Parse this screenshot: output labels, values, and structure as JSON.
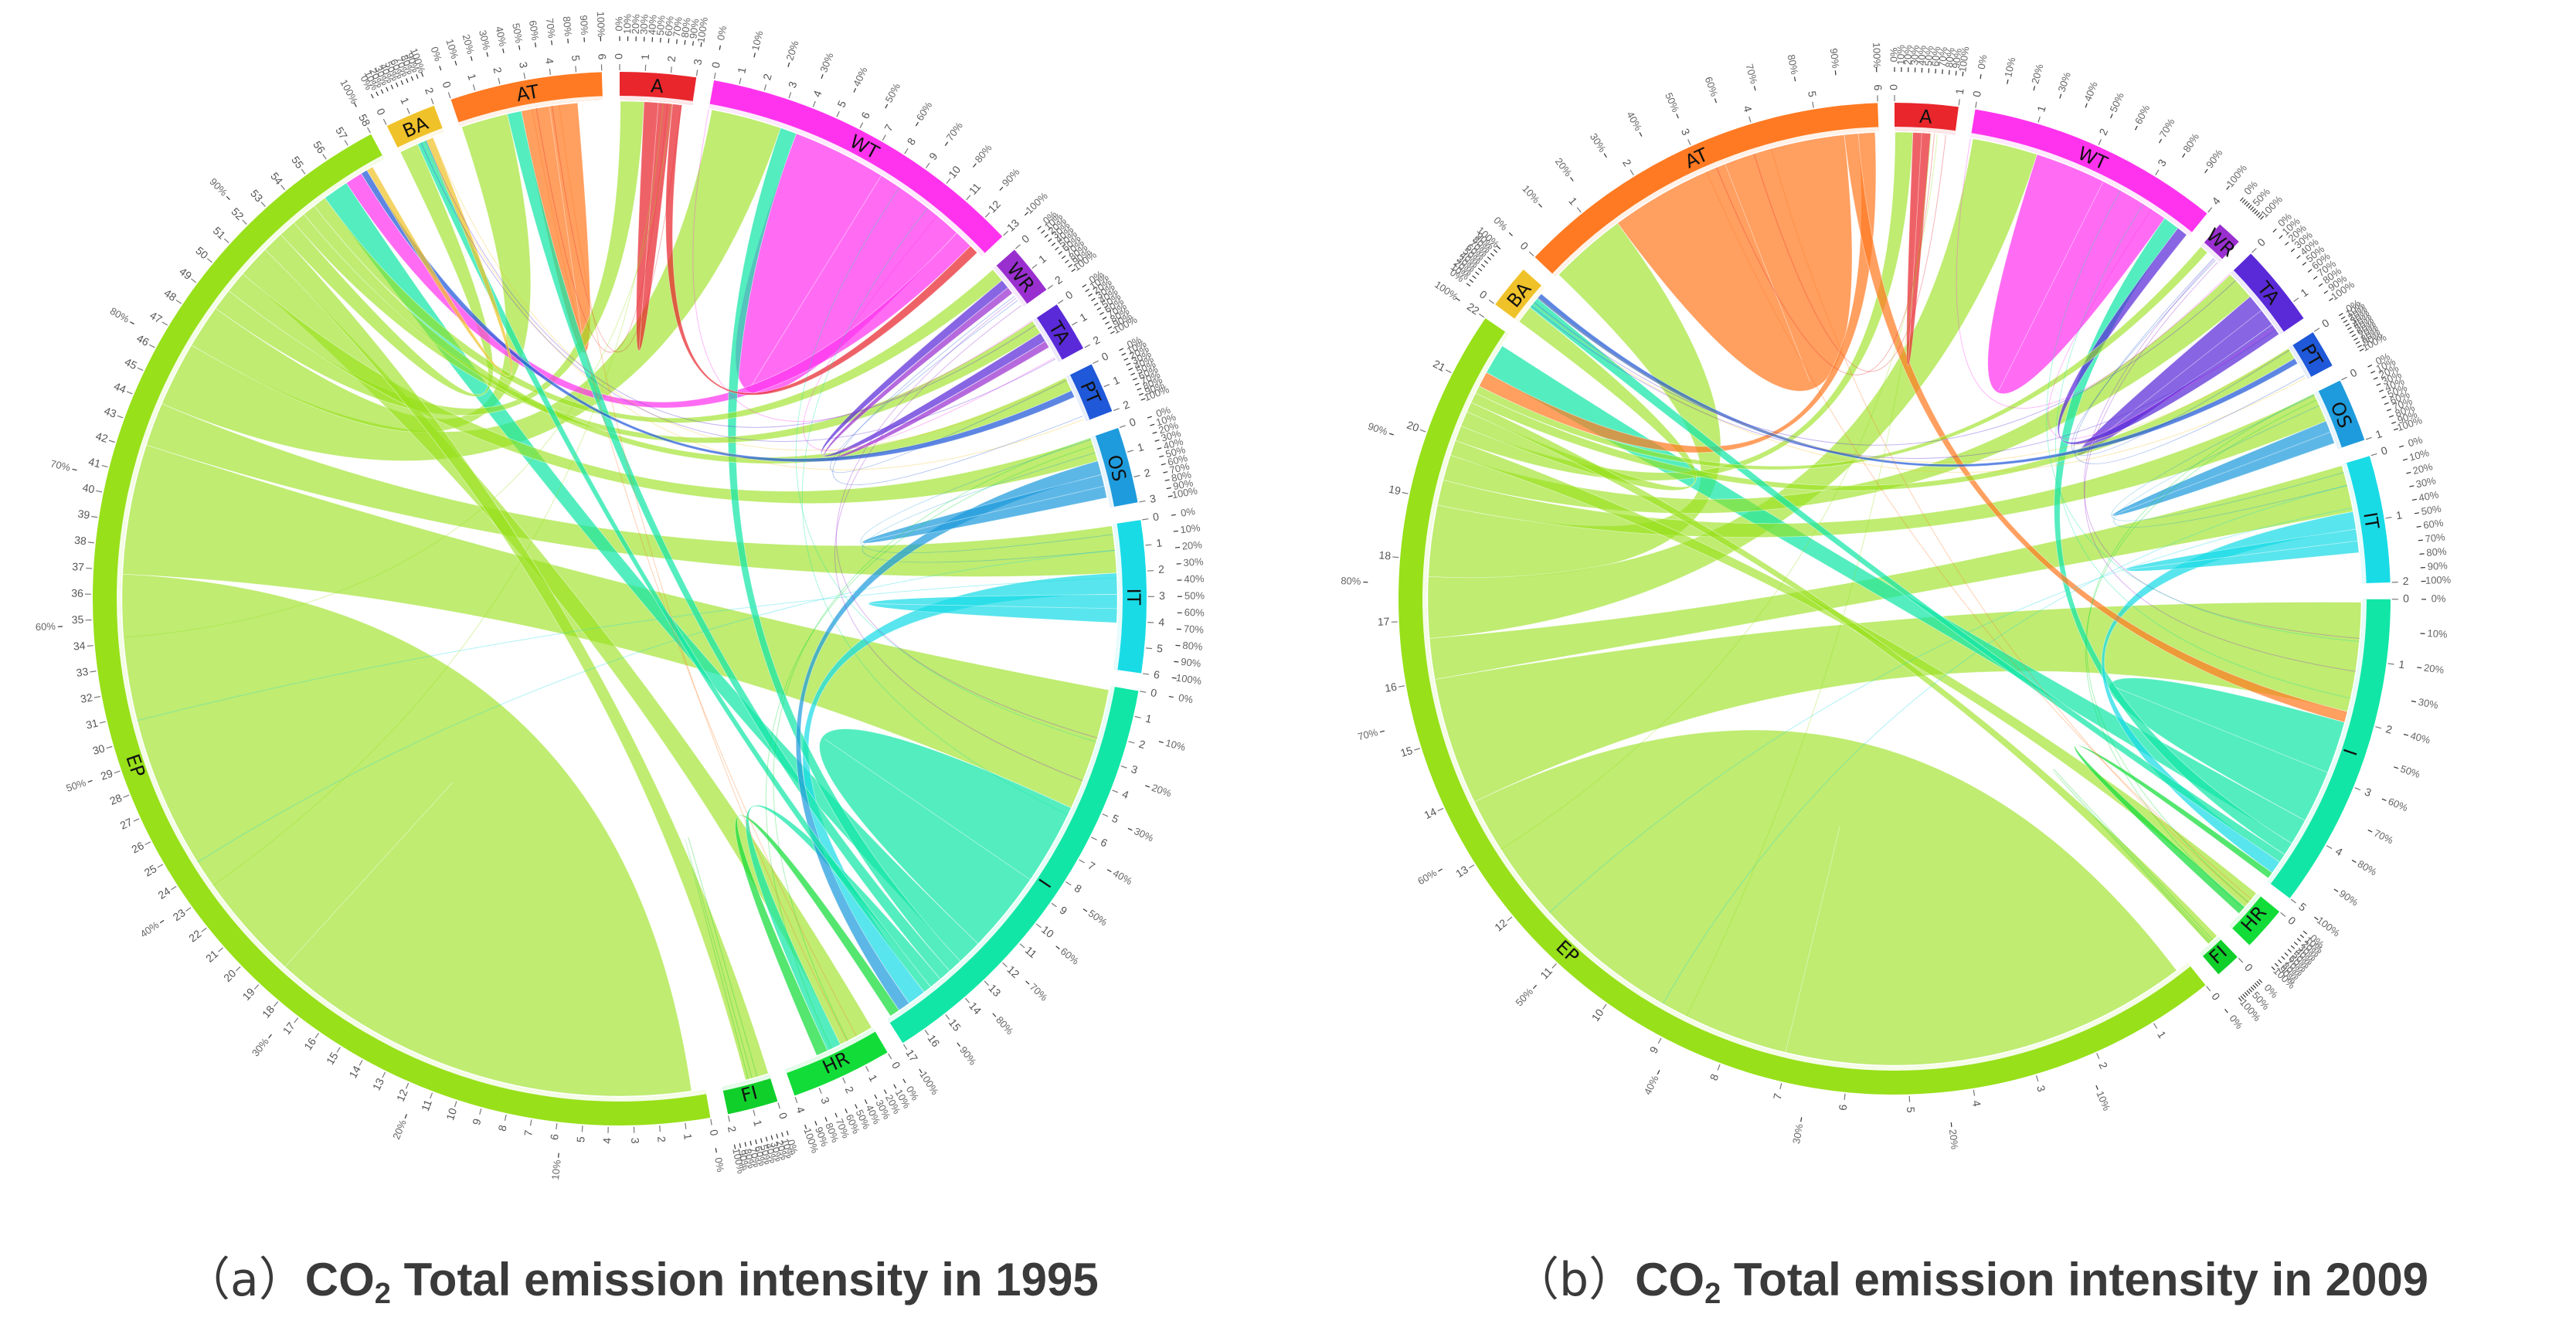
{
  "captions": {
    "a": {
      "tag": "（a）",
      "pre": "CO",
      "sub": "2",
      "post": " Total emission intensity in 1995"
    },
    "b": {
      "tag": "（b）",
      "pre": "CO",
      "sub": "2",
      "post": " Total emission intensity in 2009"
    }
  },
  "colors": {
    "A": "#e8262c",
    "WT": "#ff33ee",
    "WR": "#9a2fd0",
    "TA": "#5a2ad8",
    "PT": "#1f58d8",
    "OS": "#1e9bdc",
    "IT": "#19dbe6",
    "I": "#12e6a6",
    "HR": "#12dc38",
    "FI": "#10cf2a",
    "EP": "#98e01a",
    "BA": "#f0c22a",
    "AT": "#ff7a22"
  },
  "chart_data": [
    {
      "type": "chord",
      "title": "CO2 Total emission intensity in 1995",
      "segments": [
        {
          "id": "A",
          "label": "A",
          "value": 3,
          "ticks": [
            "0",
            "1",
            "2",
            "3"
          ]
        },
        {
          "id": "WT",
          "label": "WT",
          "value": 13,
          "ticks": [
            "0",
            "1",
            "2",
            "3",
            "4",
            "5",
            "6",
            "7",
            "8",
            "9",
            "10",
            "11",
            "12",
            "13"
          ]
        },
        {
          "id": "WR",
          "label": "WR",
          "value": 2,
          "ticks": [
            "0",
            "1",
            "2"
          ]
        },
        {
          "id": "TA",
          "label": "TA",
          "value": 2,
          "ticks": [
            "0",
            "1",
            "2"
          ]
        },
        {
          "id": "PT",
          "label": "PT",
          "value": 2,
          "ticks": [
            "0",
            "1",
            "2"
          ]
        },
        {
          "id": "OS",
          "label": "OS",
          "value": 3,
          "ticks": [
            "0",
            "1",
            "2",
            "3"
          ]
        },
        {
          "id": "IT",
          "label": "IT",
          "value": 6,
          "ticks": [
            "0",
            "1",
            "2",
            "3",
            "4",
            "5",
            "6"
          ]
        },
        {
          "id": "I",
          "label": "I",
          "value": 17,
          "ticks": [
            "0",
            "1",
            "2",
            "3",
            "4",
            "5",
            "6",
            "7",
            "8",
            "9",
            "10",
            "11",
            "12",
            "13",
            "14",
            "15",
            "16",
            "17"
          ]
        },
        {
          "id": "HR",
          "label": "HR",
          "value": 4,
          "ticks": [
            "0",
            "1",
            "2",
            "3",
            "4"
          ]
        },
        {
          "id": "FI",
          "label": "FI",
          "value": 2,
          "ticks": [
            "0",
            "1",
            "2"
          ]
        },
        {
          "id": "EP",
          "label": "EP",
          "value": 58,
          "ticks": [
            "0",
            "1",
            "2",
            "3",
            "4",
            "5",
            "6",
            "7",
            "8",
            "9",
            "10",
            "11",
            "12",
            "13",
            "14",
            "15",
            "16",
            "17",
            "18",
            "19",
            "20",
            "21",
            "22",
            "23",
            "24",
            "25",
            "26",
            "27",
            "28",
            "29",
            "30",
            "31",
            "32",
            "33",
            "34",
            "35",
            "36",
            "37",
            "38",
            "39",
            "40",
            "41",
            "42",
            "43",
            "44",
            "45",
            "46",
            "47",
            "48",
            "49",
            "50",
            "51",
            "52",
            "53",
            "54",
            "55",
            "56",
            "57",
            "58"
          ]
        },
        {
          "id": "BA",
          "label": "BA",
          "value": 2,
          "ticks": [
            "0",
            "1",
            "2"
          ]
        },
        {
          "id": "AT",
          "label": "AT",
          "value": 6,
          "ticks": [
            "0",
            "1",
            "2",
            "3",
            "4",
            "5",
            "6"
          ]
        }
      ],
      "percent_ticks": [
        "0%",
        "10%",
        "20%",
        "30%",
        "40%",
        "50%",
        "60%",
        "70%",
        "80%",
        "90%",
        "100%"
      ],
      "flows": [
        {
          "from": "EP",
          "to": "EP",
          "value": 20
        },
        {
          "from": "EP",
          "to": "I",
          "value": 6
        },
        {
          "from": "EP",
          "to": "IT",
          "value": 2
        },
        {
          "from": "EP",
          "to": "WT",
          "value": 3
        },
        {
          "from": "EP",
          "to": "AT",
          "value": 2
        },
        {
          "from": "EP",
          "to": "A",
          "value": 1
        },
        {
          "from": "EP",
          "to": "OS",
          "value": 1
        },
        {
          "from": "EP",
          "to": "HR",
          "value": 1.5
        },
        {
          "from": "EP",
          "to": "FI",
          "value": 1
        },
        {
          "from": "EP",
          "to": "BA",
          "value": 0.8
        },
        {
          "from": "EP",
          "to": "TA",
          "value": 0.6
        },
        {
          "from": "EP",
          "to": "PT",
          "value": 0.6
        },
        {
          "from": "EP",
          "to": "WR",
          "value": 0.6
        },
        {
          "from": "I",
          "to": "I",
          "value": 4
        },
        {
          "from": "I",
          "to": "EP",
          "value": 1.2
        },
        {
          "from": "I",
          "to": "WT",
          "value": 0.7
        },
        {
          "from": "I",
          "to": "AT",
          "value": 0.6
        },
        {
          "from": "I",
          "to": "HR",
          "value": 0.6
        },
        {
          "from": "I",
          "to": "BA",
          "value": 0.4
        },
        {
          "from": "WT",
          "to": "WT",
          "value": 4
        },
        {
          "from": "WT",
          "to": "EP",
          "value": 0.8
        },
        {
          "from": "AT",
          "to": "AT",
          "value": 1.2
        },
        {
          "from": "A",
          "to": "A",
          "value": 0.6
        },
        {
          "from": "A",
          "to": "WT",
          "value": 0.4
        },
        {
          "from": "IT",
          "to": "I",
          "value": 0.9
        },
        {
          "from": "IT",
          "to": "IT",
          "value": 0.6
        },
        {
          "from": "OS",
          "to": "I",
          "value": 0.6
        },
        {
          "from": "OS",
          "to": "OS",
          "value": 0.5
        },
        {
          "from": "TA",
          "to": "WR",
          "value": 0.4
        },
        {
          "from": "WR",
          "to": "TA",
          "value": 0.3
        },
        {
          "from": "HR",
          "to": "I",
          "value": 0.5
        },
        {
          "from": "PT",
          "to": "EP",
          "value": 0.3
        },
        {
          "from": "BA",
          "to": "EP",
          "value": 0.3
        }
      ]
    },
    {
      "type": "chord",
      "title": "CO2 Total emission intensity in 2009",
      "segments": [
        {
          "id": "A",
          "label": "A",
          "value": 1,
          "ticks": [
            "0",
            "1"
          ]
        },
        {
          "id": "WT",
          "label": "WT",
          "value": 4,
          "ticks": [
            "0",
            "1",
            "2",
            "3",
            "4"
          ]
        },
        {
          "id": "WR",
          "label": "WR",
          "value": 0.4,
          "ticks": []
        },
        {
          "id": "TA",
          "label": "TA",
          "value": 1.3,
          "ticks": [
            "0",
            "1"
          ]
        },
        {
          "id": "PT",
          "label": "PT",
          "value": 0.6,
          "ticks": [
            "0"
          ]
        },
        {
          "id": "OS",
          "label": "OS",
          "value": 1,
          "ticks": [
            "0",
            "1"
          ]
        },
        {
          "id": "IT",
          "label": "IT",
          "value": 2,
          "ticks": [
            "0",
            "1",
            "2"
          ]
        },
        {
          "id": "I",
          "label": "I",
          "value": 5,
          "ticks": [
            "0",
            "1",
            "2",
            "3",
            "4",
            "5"
          ]
        },
        {
          "id": "HR",
          "label": "HR",
          "value": 0.7,
          "ticks": [
            "0"
          ]
        },
        {
          "id": "FI",
          "label": "FI",
          "value": 0.4,
          "ticks": [
            "0"
          ]
        },
        {
          "id": "EP",
          "label": "EP",
          "value": 22,
          "ticks": [
            "0",
            "1",
            "2",
            "3",
            "4",
            "5",
            "6",
            "7",
            "8",
            "9",
            "10",
            "11",
            "12",
            "13",
            "14",
            "15",
            "16",
            "17",
            "18",
            "19",
            "20",
            "21",
            "22"
          ]
        },
        {
          "id": "BA",
          "label": "BA",
          "value": 0.7,
          "ticks": [
            "0"
          ]
        },
        {
          "id": "AT",
          "label": "AT",
          "value": 6,
          "ticks": [
            "0",
            "1",
            "2",
            "3",
            "4",
            "5",
            "6"
          ]
        }
      ],
      "percent_ticks": [
        "0%",
        "10%",
        "20%",
        "30%",
        "40%",
        "50%",
        "60%",
        "70%",
        "80%",
        "90%",
        "100%"
      ],
      "flows": [
        {
          "from": "EP",
          "to": "EP",
          "value": 8
        },
        {
          "from": "EP",
          "to": "I",
          "value": 2.5
        },
        {
          "from": "EP",
          "to": "IT",
          "value": 0.8
        },
        {
          "from": "EP",
          "to": "WT",
          "value": 1.2
        },
        {
          "from": "EP",
          "to": "AT",
          "value": 1.4
        },
        {
          "from": "EP",
          "to": "OS",
          "value": 0.5
        },
        {
          "from": "EP",
          "to": "TA",
          "value": 0.5
        },
        {
          "from": "EP",
          "to": "HR",
          "value": 0.3
        },
        {
          "from": "EP",
          "to": "A",
          "value": 0.3
        },
        {
          "from": "EP",
          "to": "BA",
          "value": 0.3
        },
        {
          "from": "EP",
          "to": "FI",
          "value": 0.2
        },
        {
          "from": "EP",
          "to": "PT",
          "value": 0.2
        },
        {
          "from": "EP",
          "to": "WR",
          "value": 0.15
        },
        {
          "from": "AT",
          "to": "AT",
          "value": 2.2
        },
        {
          "from": "AT",
          "to": "I",
          "value": 0.25
        },
        {
          "from": "AT",
          "to": "EP",
          "value": 0.3
        },
        {
          "from": "WT",
          "to": "WT",
          "value": 1.3
        },
        {
          "from": "I",
          "to": "I",
          "value": 1.2
        },
        {
          "from": "I",
          "to": "EP",
          "value": 0.6
        },
        {
          "from": "I",
          "to": "WT",
          "value": 0.3
        },
        {
          "from": "I",
          "to": "BA",
          "value": 0.2
        },
        {
          "from": "IT",
          "to": "I",
          "value": 0.3
        },
        {
          "from": "IT",
          "to": "IT",
          "value": 0.2
        },
        {
          "from": "TA",
          "to": "TA",
          "value": 0.3
        },
        {
          "from": "TA",
          "to": "WT",
          "value": 0.2
        },
        {
          "from": "A",
          "to": "A",
          "value": 0.15
        },
        {
          "from": "OS",
          "to": "OS",
          "value": 0.2
        },
        {
          "from": "PT",
          "to": "BA",
          "value": 0.1
        },
        {
          "from": "HR",
          "to": "I",
          "value": 0.15
        }
      ]
    }
  ]
}
